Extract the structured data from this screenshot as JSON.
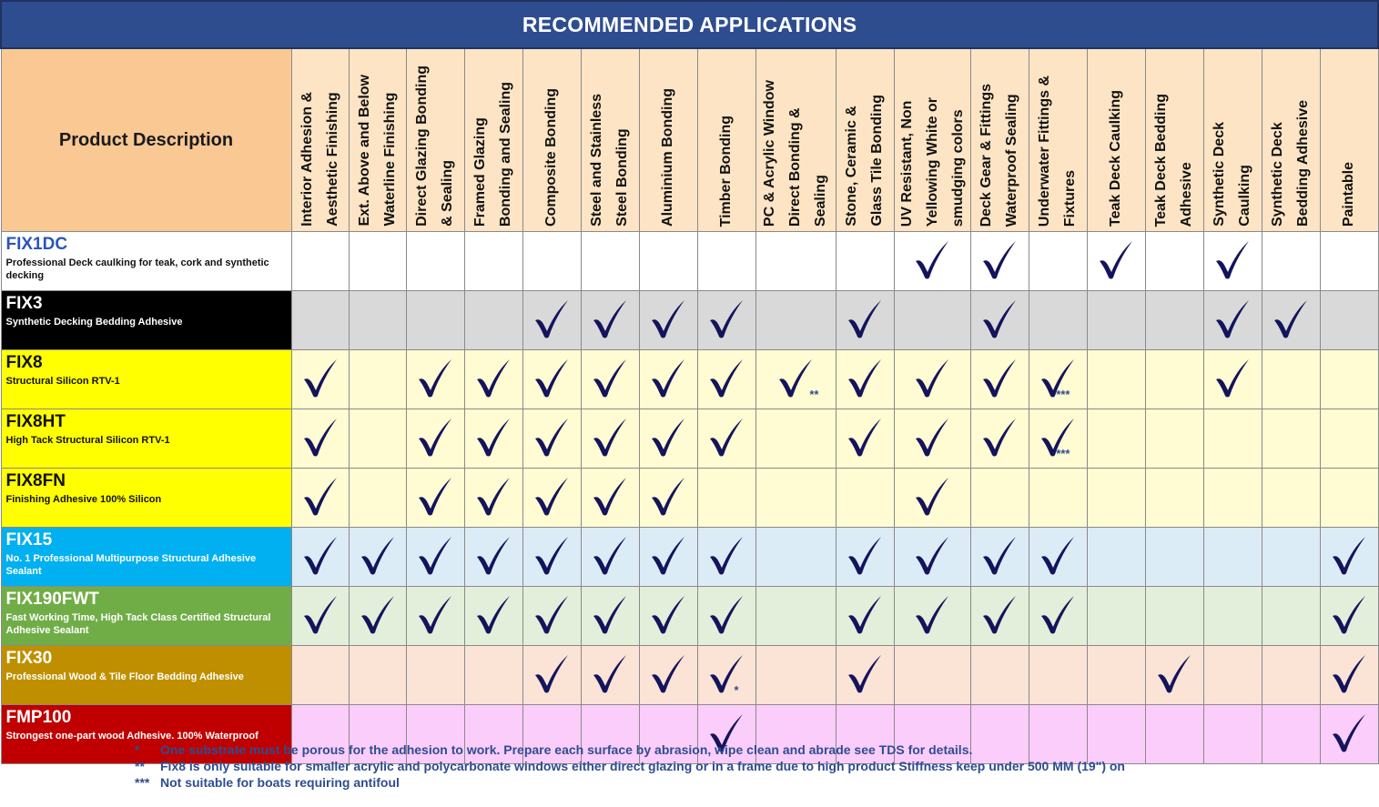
{
  "title": "RECOMMENDED APPLICATIONS",
  "description_header": "Product Description",
  "columns": [
    "Interior Adhesion &\nAesthetic Finishing",
    "Ext. Above and Below\nWaterline Finishing",
    "Direct Glazing Bonding\n& Sealing",
    "Framed Glazing\nBonding and Sealing",
    "Composite Bonding",
    "Steel and Stainless\nSteel Bonding",
    "Aluminium Bonding",
    "Timber Bonding",
    "PC & Acrylic Window\nDirect Bonding &\nSealing",
    "Stone, Ceramic &\nGlass Tile Bonding",
    "UV Resistant, Non\nYellowing White or\nsmudging colors",
    "Deck Gear & Fittings\nWaterproof Sealing",
    "Underwater Fittings &\nFixtures",
    "Teak Deck Caulking",
    "Teak Deck Bedding\nAdhesive",
    "Synthetic Deck\nCaulking",
    "Synthetic Deck\nBedding Adhesive",
    "Paintable"
  ],
  "check_color": "#14145c",
  "products": [
    {
      "name": "FIX1DC",
      "desc": "Professional Deck caulking for teak, cork and synthetic decking",
      "label_bg": "#ffffff",
      "row_bg": "#ffffff",
      "name_color": "#2b55b8",
      "desc_color": "#111111",
      "checks": [
        0,
        0,
        0,
        0,
        0,
        0,
        0,
        0,
        0,
        0,
        1,
        1,
        0,
        1,
        0,
        1,
        0,
        0
      ],
      "notes": [
        "",
        "",
        "",
        "",
        "",
        "",
        "",
        "",
        "",
        "",
        "",
        "",
        "",
        "",
        "",
        "",
        "",
        ""
      ]
    },
    {
      "name": "FIX3",
      "desc": "Synthetic Decking Bedding Adhesive",
      "label_bg": "#000000",
      "row_bg": "#d9d9d9",
      "name_color": "#ffffff",
      "desc_color": "#ffffff",
      "checks": [
        0,
        0,
        0,
        0,
        1,
        1,
        1,
        1,
        0,
        1,
        0,
        1,
        0,
        0,
        0,
        1,
        1,
        0
      ],
      "notes": [
        "",
        "",
        "",
        "",
        "",
        "",
        "",
        "",
        "",
        "",
        "",
        "",
        "",
        "",
        "",
        "",
        "",
        ""
      ]
    },
    {
      "name": "FIX8",
      "desc": "Structural Silicon RTV-1",
      "label_bg": "#ffff00",
      "row_bg": "#fffbd2",
      "name_color": "#111111",
      "desc_color": "#111111",
      "checks": [
        1,
        0,
        1,
        1,
        1,
        1,
        1,
        1,
        1,
        1,
        1,
        1,
        1,
        0,
        0,
        1,
        0,
        0
      ],
      "notes": [
        "",
        "",
        "",
        "",
        "",
        "",
        "",
        "",
        "**",
        "",
        "",
        "",
        "***",
        "",
        "",
        "",
        "",
        ""
      ]
    },
    {
      "name": "FIX8HT",
      "desc": "High Tack Structural Silicon RTV-1",
      "label_bg": "#ffff00",
      "row_bg": "#fffbd2",
      "name_color": "#111111",
      "desc_color": "#111111",
      "checks": [
        1,
        0,
        1,
        1,
        1,
        1,
        1,
        1,
        0,
        1,
        1,
        1,
        1,
        0,
        0,
        0,
        0,
        0
      ],
      "notes": [
        "",
        "",
        "",
        "",
        "",
        "",
        "",
        "",
        "",
        "",
        "",
        "",
        "***",
        "",
        "",
        "",
        "",
        ""
      ]
    },
    {
      "name": "FIX8FN",
      "desc": "Finishing Adhesive 100% Silicon",
      "label_bg": "#ffff00",
      "row_bg": "#fffbd2",
      "name_color": "#111111",
      "desc_color": "#111111",
      "checks": [
        1,
        0,
        1,
        1,
        1,
        1,
        1,
        0,
        0,
        0,
        1,
        0,
        0,
        0,
        0,
        0,
        0,
        0
      ],
      "notes": [
        "",
        "",
        "",
        "",
        "",
        "",
        "",
        "",
        "",
        "",
        "",
        "",
        "",
        "",
        "",
        "",
        "",
        ""
      ]
    },
    {
      "name": "FIX15",
      "desc": "No. 1 Professional Multipurpose Structural Adhesive Sealant",
      "label_bg": "#00b0f0",
      "row_bg": "#dcecf7",
      "name_color": "#ffffff",
      "desc_color": "#ffffff",
      "checks": [
        1,
        1,
        1,
        1,
        1,
        1,
        1,
        1,
        0,
        1,
        1,
        1,
        1,
        0,
        0,
        0,
        0,
        1
      ],
      "notes": [
        "",
        "",
        "",
        "",
        "",
        "",
        "",
        "",
        "",
        "",
        "",
        "",
        "",
        "",
        "",
        "",
        "",
        ""
      ]
    },
    {
      "name": "FIX190FWT",
      "desc": "Fast Working Time, High Tack Class Certified Structural Adhesive Sealant",
      "label_bg": "#70ad47",
      "row_bg": "#e3efda",
      "name_color": "#ffffff",
      "desc_color": "#ffffff",
      "checks": [
        1,
        1,
        1,
        1,
        1,
        1,
        1,
        1,
        0,
        1,
        1,
        1,
        1,
        0,
        0,
        0,
        0,
        1
      ],
      "notes": [
        "",
        "",
        "",
        "",
        "",
        "",
        "",
        "",
        "",
        "",
        "",
        "",
        "",
        "",
        "",
        "",
        "",
        ""
      ]
    },
    {
      "name": "FIX30",
      "desc": "Professional Wood & Tile Floor Bedding Adhesive",
      "label_bg": "#bf8f00",
      "row_bg": "#fbe3d6",
      "name_color": "#ffffff",
      "desc_color": "#ffffff",
      "checks": [
        0,
        0,
        0,
        0,
        1,
        1,
        1,
        1,
        0,
        1,
        0,
        0,
        0,
        0,
        1,
        0,
        0,
        1
      ],
      "notes": [
        "",
        "",
        "",
        "",
        "",
        "",
        "",
        "*",
        "",
        "",
        "",
        "",
        "",
        "",
        "",
        "",
        "",
        ""
      ]
    },
    {
      "name": "FMP100",
      "desc": "Strongest one-part wood Adhesive. 100% Waterproof",
      "label_bg": "#c00000",
      "row_bg": "#fbcdfb",
      "name_color": "#ffffff",
      "desc_color": "#ffffff",
      "checks": [
        0,
        0,
        0,
        0,
        0,
        0,
        0,
        1,
        0,
        0,
        0,
        0,
        0,
        0,
        0,
        0,
        0,
        1
      ],
      "notes": [
        "",
        "",
        "",
        "",
        "",
        "",
        "",
        "",
        "",
        "",
        "",
        "",
        "",
        "",
        "",
        "",
        "",
        ""
      ]
    }
  ],
  "footnotes": [
    {
      "symbol": "*",
      "text": "One substrate must be porous for the adhesion to work. Prepare each surface by abrasion, wipe clean and abrade see TDS for details."
    },
    {
      "symbol": "**",
      "text": "Fix8 is only suitable for smaller acrylic and polycarbonate windows either direct glazing or in a frame due to high product Stiffness keep under 500 MM (19\") on"
    },
    {
      "symbol": "***",
      "text": "Not suitable for boats requiring antifoul"
    }
  ]
}
